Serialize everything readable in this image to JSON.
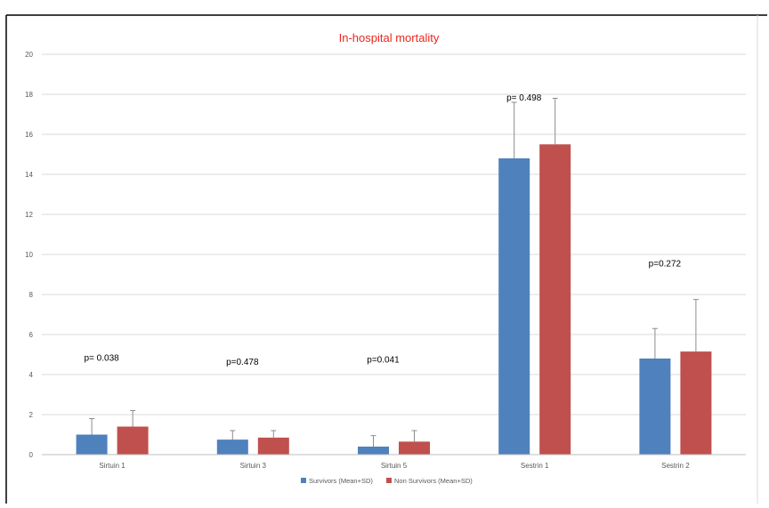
{
  "chart_data": {
    "type": "bar",
    "title": "In-hospital mortality",
    "categories": [
      "Sirtuin 1",
      "Sirtuin 3",
      "Sirtuin 5",
      "Sestrin 1",
      "Sestrin 2"
    ],
    "series": [
      {
        "name": "Survivors (Mean+SD)",
        "color": "#4f81bd",
        "values": [
          1.0,
          0.75,
          0.4,
          14.8,
          4.8
        ],
        "error_upper": [
          1.8,
          1.2,
          0.95,
          17.6,
          6.3
        ]
      },
      {
        "name": "Non Survivors (Mean+SD)",
        "color": "#c0504d",
        "values": [
          1.4,
          0.85,
          0.65,
          15.5,
          5.15
        ],
        "error_upper": [
          2.2,
          1.2,
          1.2,
          17.8,
          7.75
        ]
      }
    ],
    "annotations": [
      "p= 0.038",
      "p=0.478",
      "p=0.041",
      "p= 0.498",
      "p=0.272"
    ],
    "annotation_levels": [
      4.7,
      4.5,
      4.6,
      17.7,
      9.4
    ],
    "ylim": [
      0,
      20
    ],
    "yticks": [
      0,
      2,
      4,
      6,
      8,
      10,
      12,
      14,
      16,
      18,
      20
    ],
    "xlabel": "",
    "ylabel": "",
    "grid": true,
    "legend_position": "bottom",
    "title_color": "#e8271d"
  }
}
